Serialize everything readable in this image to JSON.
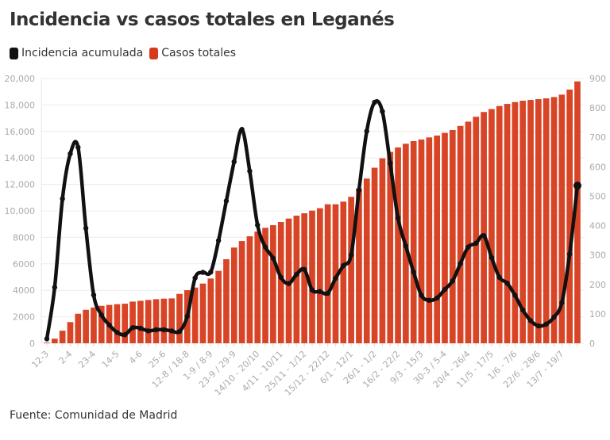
{
  "title": "Incidencia vs casos totales en Leganés",
  "source": "Fuente: Comunidad de Madrid",
  "legend": [
    {
      "label": "Incidencia acumulada",
      "color": "#111111"
    },
    {
      "label": "Casos totales",
      "color": "#d63a1a"
    }
  ],
  "chart_data": {
    "type": "bar+line",
    "title": "Incidencia vs casos totales en Leganés",
    "legend_position": "top-left",
    "grid": true,
    "x_tick_every": 3,
    "x_tick_labels": [
      "12-3",
      "2-4",
      "23-4",
      "14-5",
      "4-6",
      "25-6",
      "12-8 / 18-8",
      "1-9 / 8-9",
      "23-9 / 29-9",
      "14/10 - 20/10",
      "4/11 - 10/11",
      "25/11 - 1/12",
      "15/12 - 22/12",
      "6/1 - 12/1",
      "26/1 - 1/2",
      "16/2 - 22/2",
      "9/3 - 15/3",
      "30-3 / 5-4",
      "20/4 - 26/4",
      "11/5 - 17/5",
      "1/6 - 7/6",
      "22/6 - 28/6",
      "13/7 - 19/7"
    ],
    "y_left": {
      "min": 0,
      "max": 20000,
      "ticks": [
        "0",
        "2000",
        "4000",
        "6000",
        "8000",
        "10,000",
        "12,000",
        "14,000",
        "16,000",
        "18,000",
        "20,000"
      ],
      "tick_values": [
        0,
        2000,
        4000,
        6000,
        8000,
        10000,
        12000,
        14000,
        16000,
        18000,
        20000
      ]
    },
    "y_right": {
      "min": 0,
      "max": 900,
      "ticks": [
        "0",
        "100",
        "200",
        "300",
        "400",
        "500",
        "600",
        "700",
        "800",
        "900"
      ],
      "tick_values": [
        0,
        100,
        200,
        300,
        400,
        500,
        600,
        700,
        800,
        900
      ]
    },
    "series": [
      {
        "name": "Casos totales",
        "type": "bar",
        "axis": "left",
        "color": "#d63a1a",
        "values": [
          50,
          350,
          950,
          1600,
          2230,
          2530,
          2700,
          2830,
          2900,
          2950,
          2990,
          3150,
          3210,
          3270,
          3330,
          3370,
          3390,
          3730,
          4010,
          4210,
          4510,
          4890,
          5470,
          6350,
          7230,
          7720,
          8080,
          8440,
          8720,
          8920,
          9160,
          9420,
          9640,
          9820,
          10020,
          10200,
          10500,
          10500,
          10700,
          11060,
          11700,
          12440,
          13260,
          13970,
          14450,
          14790,
          15070,
          15270,
          15390,
          15550,
          15690,
          15890,
          16110,
          16420,
          16740,
          17110,
          17470,
          17690,
          17920,
          18080,
          18220,
          18320,
          18380,
          18440,
          18500,
          18600,
          18780,
          19160,
          19780
        ]
      },
      {
        "name": "Incidencia acumulada",
        "type": "line",
        "axis": "right",
        "color": "#111111",
        "values": [
          15,
          190,
          491,
          644,
          666,
          391,
          164,
          96,
          62,
          37,
          29,
          53,
          51,
          42,
          46,
          46,
          42,
          40,
          92,
          222,
          241,
          242,
          349,
          484,
          617,
          727,
          585,
          402,
          327,
          289,
          224,
          203,
          234,
          251,
          181,
          176,
          170,
          221,
          264,
          300,
          520,
          721,
          819,
          788,
          612,
          426,
          331,
          242,
          163,
          146,
          154,
          183,
          212,
          271,
          327,
          340,
          366,
          291,
          224,
          204,
          163,
          113,
          77,
          59,
          65,
          89,
          138,
          303,
          536
        ]
      }
    ]
  }
}
